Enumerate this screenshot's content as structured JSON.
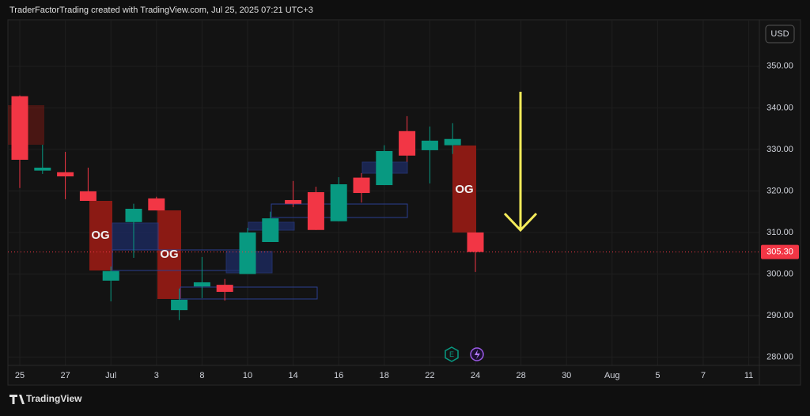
{
  "header": {
    "title": "TraderFactorTrading created with TradingView.com, Jul 25, 2025 07:21 UTC+3",
    "currency": "USD",
    "brand": "TradingView"
  },
  "chart_data": {
    "type": "candlestick",
    "categories": [
      "25",
      null,
      "27",
      null,
      "Jul",
      null,
      "3",
      null,
      "8",
      null,
      "10",
      null,
      "14",
      null,
      "16",
      null,
      "18",
      null,
      "22",
      null,
      "24",
      null,
      "28",
      null,
      "30",
      null,
      "Aug",
      null,
      "5",
      null,
      "7",
      null,
      "11"
    ],
    "open": [
      342.8,
      324.9,
      324.5,
      319.9,
      298.4,
      312.5,
      318.2,
      291.3,
      297.0,
      297.4,
      300.0,
      307.7,
      317.8,
      319.7,
      312.7,
      323.2,
      321.4,
      334.4,
      329.8,
      331.0,
      310.0,
      null,
      null,
      null,
      null,
      null,
      null,
      null,
      null,
      null,
      null,
      null,
      null
    ],
    "high": [
      343.0,
      331.1,
      329.4,
      325.6,
      301.8,
      316.9,
      318.6,
      296.5,
      304.1,
      298.8,
      311.1,
      315.0,
      322.4,
      321.0,
      323.3,
      324.3,
      331.0,
      338.0,
      335.5,
      336.3,
      310.0,
      null,
      null,
      null,
      null,
      null,
      null,
      null,
      null,
      null,
      null,
      null,
      null
    ],
    "low": [
      320.7,
      324.1,
      318.0,
      317.6,
      293.4,
      303.9,
      315.3,
      288.9,
      294.2,
      293.6,
      300.0,
      307.7,
      316.1,
      310.6,
      312.7,
      317.2,
      321.4,
      327.0,
      321.8,
      328.9,
      300.5,
      null,
      null,
      null,
      null,
      null,
      null,
      null,
      null,
      null,
      null,
      null,
      null
    ],
    "close": [
      327.5,
      325.6,
      323.5,
      317.6,
      300.7,
      315.7,
      315.3,
      293.8,
      298.0,
      295.7,
      310.0,
      313.4,
      316.9,
      310.6,
      321.6,
      319.5,
      329.6,
      328.5,
      332.1,
      332.5,
      305.3,
      null,
      null,
      null,
      null,
      null,
      null,
      null,
      null,
      null,
      null,
      null,
      null
    ],
    "up_color": "#089981",
    "down_color": "#f23645",
    "ylim": [
      278,
      361.2
    ],
    "yticks": [
      {
        "value": 280,
        "label": "280.00"
      },
      {
        "value": 290,
        "label": "290.00"
      },
      {
        "value": 300,
        "label": "300.00"
      },
      {
        "value": 310,
        "label": "310.00"
      },
      {
        "value": 320,
        "label": "320.00"
      },
      {
        "value": 330,
        "label": "330.00"
      },
      {
        "value": 340,
        "label": "340.00"
      },
      {
        "value": 350,
        "label": "350.00"
      }
    ],
    "last_price": {
      "value": 305.3,
      "label": "305.30"
    },
    "grid": true,
    "annotations": [
      "OG",
      "OG",
      "OG"
    ],
    "icons": [
      "E"
    ]
  }
}
